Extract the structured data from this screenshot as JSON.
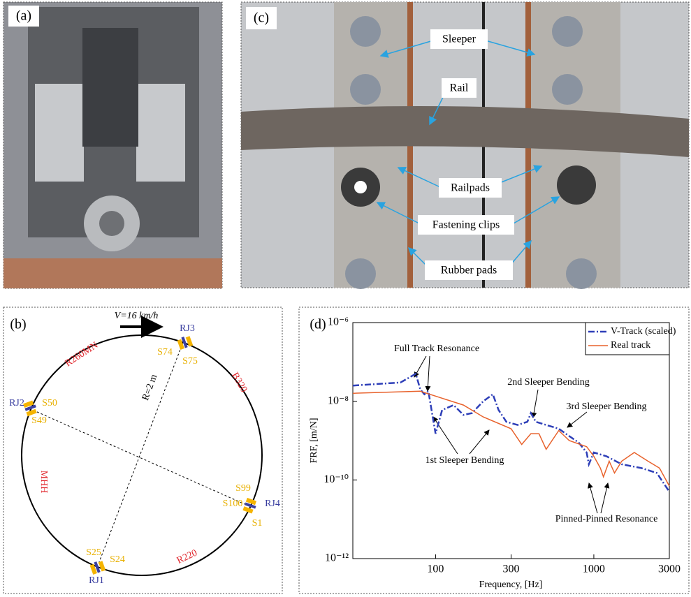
{
  "panels": {
    "a": {
      "label": "(a)"
    },
    "c": {
      "label": "(c)",
      "annotations": [
        "Sleeper",
        "Rail",
        "Railpads",
        "Fastening clips",
        "Rubber pads"
      ]
    },
    "b": {
      "label": "(b)",
      "speed": "V=16 km/h",
      "radius": "R=2 m",
      "joints": [
        "RJ1",
        "RJ2",
        "RJ3",
        "RJ4"
      ],
      "sleepers": [
        "S1",
        "S24",
        "S25",
        "S49",
        "S50",
        "S74",
        "S75",
        "S99",
        "S100"
      ],
      "sections": [
        "R260MN",
        "B320",
        "MHH",
        "R220"
      ]
    }
  },
  "chart_data": {
    "type": "line",
    "panel_label": "(d)",
    "xlabel": "Frequency, [Hz]",
    "ylabel": "FRF, [m/N]",
    "xscale": "log",
    "yscale": "log",
    "xlim": [
      30,
      3000
    ],
    "xticks": [
      100,
      300,
      1000,
      3000
    ],
    "ylim": [
      1e-12,
      1e-06
    ],
    "yticks": [
      {
        "value": 1e-12,
        "label": "10⁻¹²"
      },
      {
        "value": 1e-10,
        "label": "10⁻¹⁰"
      },
      {
        "value": 1e-08,
        "label": "10⁻⁸"
      },
      {
        "value": 1e-06,
        "label": "10⁻⁶"
      }
    ],
    "legend": "upper right",
    "series": [
      {
        "name": "V-Track (scaled)",
        "color": "#2e3fb8",
        "dash": true,
        "x": [
          30,
          60,
          75,
          80,
          85,
          90,
          95,
          100,
          110,
          130,
          150,
          170,
          200,
          230,
          250,
          280,
          330,
          380,
          400,
          430,
          500,
          600,
          700,
          800,
          900,
          930,
          1000,
          1200,
          1500,
          2000,
          2500,
          3000
        ],
        "values": [
          2.5e-08,
          3e-08,
          5e-08,
          2e-08,
          1.5e-08,
          1.8e-08,
          5e-09,
          1.5e-09,
          6e-09,
          8e-09,
          4.5e-09,
          5e-09,
          1e-08,
          1.5e-08,
          6e-09,
          3e-09,
          2.5e-09,
          3e-09,
          5e-09,
          3e-09,
          2.5e-09,
          2e-09,
          1.3e-09,
          9e-10,
          5e-10,
          2.5e-10,
          5e-10,
          4e-10,
          2.5e-10,
          2e-10,
          1.5e-10,
          5e-11
        ]
      },
      {
        "name": "Real track",
        "color": "#e8622c",
        "dash": false,
        "x": [
          30,
          80,
          150,
          200,
          300,
          350,
          400,
          450,
          500,
          600,
          700,
          900,
          1000,
          1100,
          1150,
          1250,
          1350,
          1500,
          1800,
          2200,
          2600,
          3000
        ],
        "values": [
          1.6e-08,
          1.8e-08,
          8e-09,
          4e-09,
          2e-09,
          8e-10,
          1.5e-09,
          1.5e-09,
          6e-10,
          1.8e-09,
          1e-09,
          7e-10,
          4e-10,
          2e-10,
          1.2e-10,
          3e-10,
          1.5e-10,
          3e-10,
          5e-10,
          3e-10,
          2e-10,
          7e-11
        ]
      }
    ],
    "annotations": [
      "Full Track Resonance",
      "2nd Sleeper Bending",
      "3rd Sleeper Bending",
      "1st Sleeper Bending",
      "Pinned-Pinned Resonance"
    ]
  }
}
